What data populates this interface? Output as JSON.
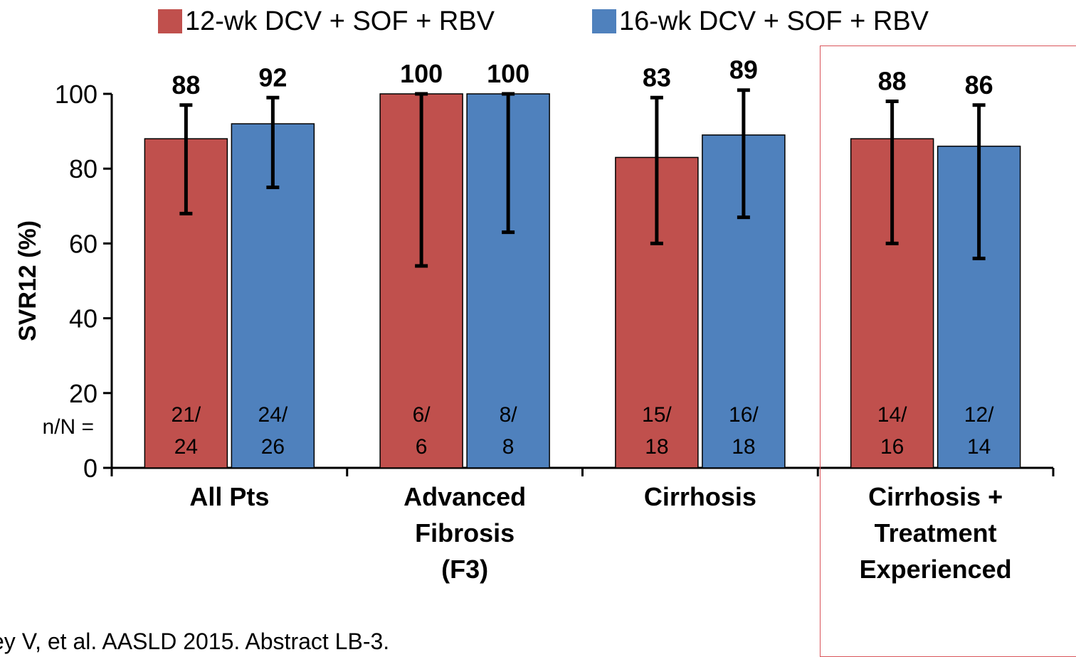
{
  "legend": [
    {
      "label": "12-wk DCV + SOF + RBV",
      "color": "#c0504d"
    },
    {
      "label": "16-wk DCV + SOF + RBV",
      "color": "#4f81bd"
    }
  ],
  "source_text": "ey V, et al. AASLD 2015. Abstract LB-3.",
  "chart_data": {
    "type": "bar",
    "ylabel": "SVR12 (%)",
    "ylim": [
      0,
      100
    ],
    "yticks": [
      0,
      20,
      40,
      60,
      80,
      100
    ],
    "n_label": "n/N =",
    "categories": [
      [
        "All Pts"
      ],
      [
        "Advanced",
        "Fibrosis",
        "(F3)"
      ],
      [
        "Cirrhosis"
      ],
      [
        "Cirrhosis +",
        "Treatment",
        "Experienced"
      ]
    ],
    "series": [
      {
        "name": "12-wk DCV + SOF + RBV",
        "color": "#c0504d",
        "values": [
          88,
          100,
          83,
          88
        ],
        "labels": [
          "88",
          "100",
          "83",
          "88"
        ],
        "n_top": [
          "21/",
          "6/",
          "15/",
          "14/"
        ],
        "n_bottom": [
          "24",
          "6",
          "18",
          "16"
        ],
        "error_low": [
          68,
          54,
          60,
          60
        ],
        "error_high": [
          97,
          100,
          99,
          98
        ]
      },
      {
        "name": "16-wk DCV + SOF + RBV",
        "color": "#4f81bd",
        "values": [
          92,
          100,
          89,
          86
        ],
        "labels": [
          "92",
          "100",
          "89",
          "86"
        ],
        "n_top": [
          "24/",
          "8/",
          "16/",
          "12/"
        ],
        "n_bottom": [
          "26",
          "8",
          "18",
          "14"
        ],
        "error_low": [
          75,
          63,
          67,
          56
        ],
        "error_high": [
          99,
          100,
          101,
          97
        ]
      }
    ],
    "highlight_category": 3
  }
}
